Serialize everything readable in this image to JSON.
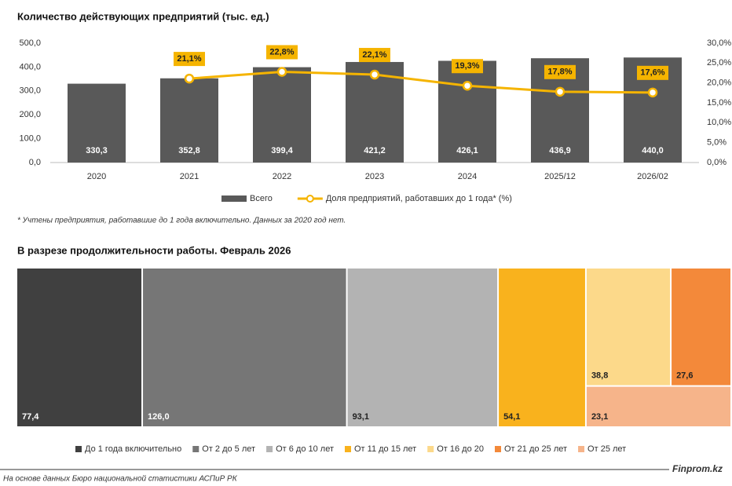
{
  "chart_data": [
    {
      "type": "bar",
      "title": "Количество действующих предприятий (тыс. ед.)",
      "categories": [
        "2020",
        "2021",
        "2022",
        "2023",
        "2024",
        "2025/12",
        "2026/02"
      ],
      "series": [
        {
          "name": "Всего",
          "color": "#595959",
          "values": [
            330.3,
            352.8,
            399.4,
            421.2,
            426.1,
            436.9,
            440.0
          ],
          "value_labels": [
            "330,3",
            "352,8",
            "399,4",
            "421,2",
            "426,1",
            "436,9",
            "440,0"
          ]
        },
        {
          "name": "Доля предприятий, работавших до 1 года* (%)",
          "color": "#f5b400",
          "axis": "y2",
          "values": [
            null,
            21.1,
            22.8,
            22.1,
            19.3,
            17.8,
            17.6
          ],
          "value_labels": [
            null,
            "21,1%",
            "22,8%",
            "22,1%",
            "19,3%",
            "17,8%",
            "17,6%"
          ]
        }
      ],
      "ylim": [
        0,
        500
      ],
      "yticks": [
        {
          "value": 0,
          "label": "0,0"
        },
        {
          "value": 100,
          "label": "100,0"
        },
        {
          "value": 200,
          "label": "200,0"
        },
        {
          "value": 300,
          "label": "300,0"
        },
        {
          "value": 400,
          "label": "400,0"
        },
        {
          "value": 500,
          "label": "500,0"
        }
      ],
      "y2lim": [
        0,
        30
      ],
      "y2ticks": [
        {
          "value": 0,
          "label": "0,0%"
        },
        {
          "value": 5,
          "label": "5,0%"
        },
        {
          "value": 10,
          "label": "10,0%"
        },
        {
          "value": 15,
          "label": "15,0%"
        },
        {
          "value": 20,
          "label": "20,0%"
        },
        {
          "value": 25,
          "label": "25,0%"
        },
        {
          "value": 30,
          "label": "30,0%"
        }
      ],
      "grid": false,
      "legend": "bottom",
      "footnote": "* Учтены предприятия, работавшие до 1 года включительно. Данных за 2020 год нет."
    },
    {
      "type": "treemap",
      "title": "В разрезе продолжительности работы. Февраль 2026",
      "categories": [
        "До 1 года включительно",
        "От 2 до 5 лет",
        "От 6 до 10 лет",
        "От 11 до 15 лет",
        "От 16 до 20",
        "От 21 до 25 лет",
        "От 25 лет"
      ],
      "values": [
        77.4,
        126.0,
        93.1,
        54.1,
        38.8,
        27.6,
        23.1
      ],
      "value_labels": [
        "77,4",
        "126,0",
        "93,1",
        "54,1",
        "38,8",
        "27,6",
        "23,1"
      ],
      "colors": [
        "#404040",
        "#767676",
        "#b3b3b3",
        "#f9b21d",
        "#fcd98a",
        "#f3893a",
        "#f6b48a"
      ],
      "legend": "bottom"
    }
  ],
  "source": "На основе данных Бюро национальной статистики АСПиР РК",
  "watermark": "Finprom.kz"
}
